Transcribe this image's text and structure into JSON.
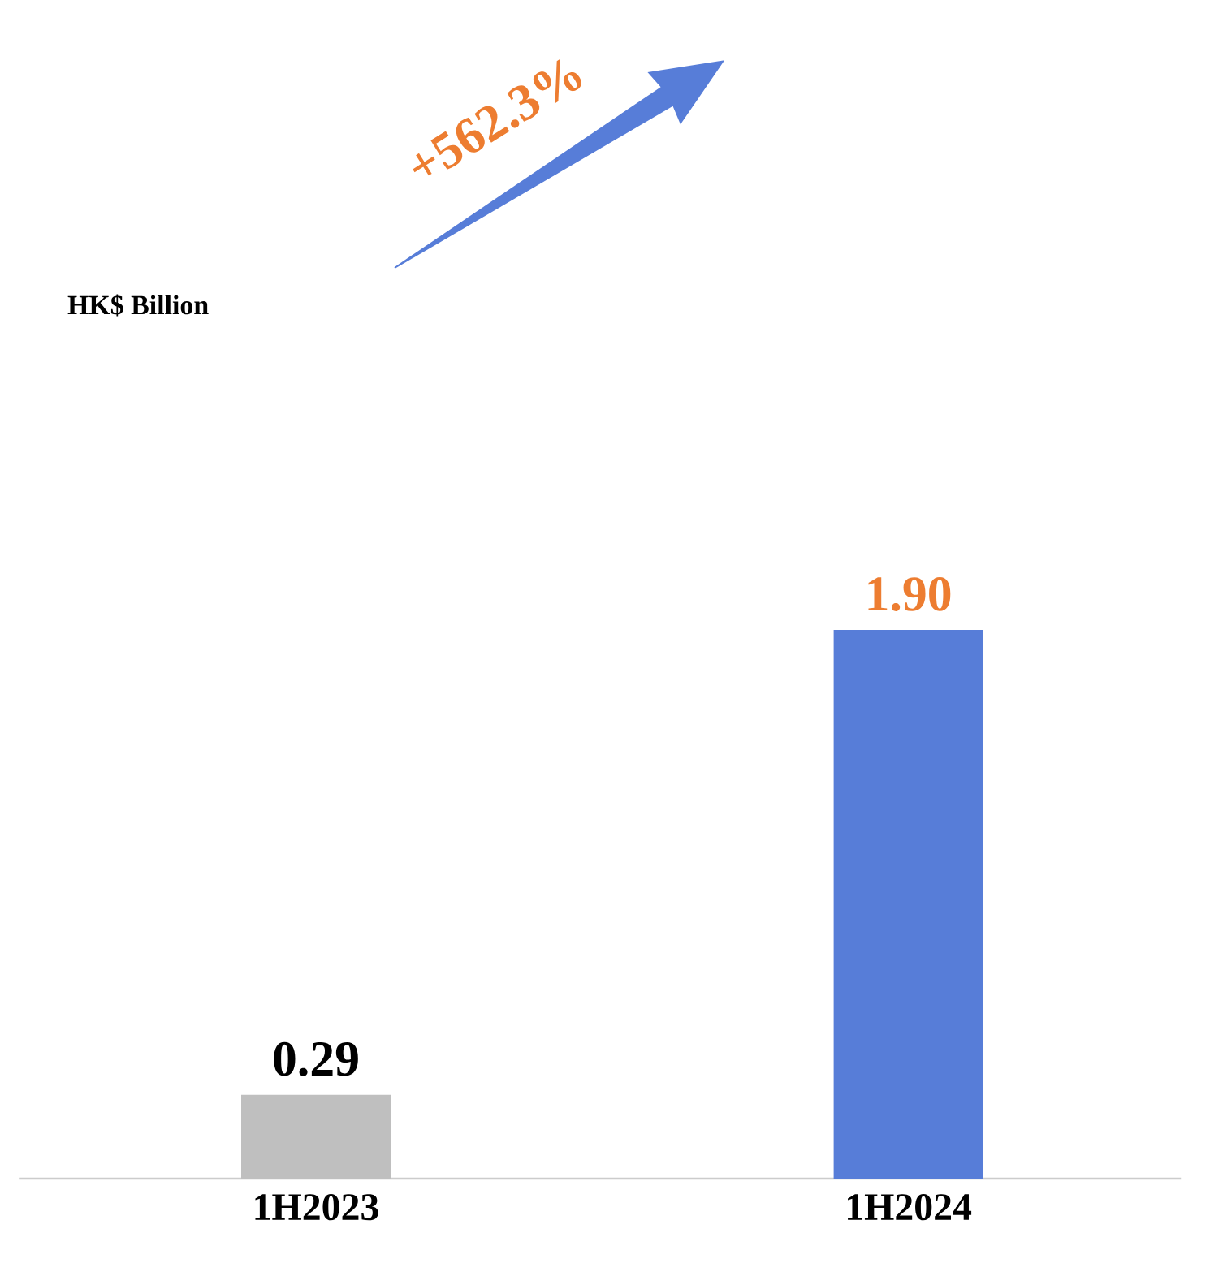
{
  "chart_data": {
    "type": "bar",
    "categories": [
      "1H2023",
      "1H2024"
    ],
    "values": [
      0.29,
      1.9
    ],
    "value_labels": [
      "0.29",
      "1.90"
    ],
    "colors": [
      "#bfbfbf",
      "#577dd8"
    ],
    "annotations": [
      "HK$ Billion",
      "+562.3%"
    ]
  }
}
